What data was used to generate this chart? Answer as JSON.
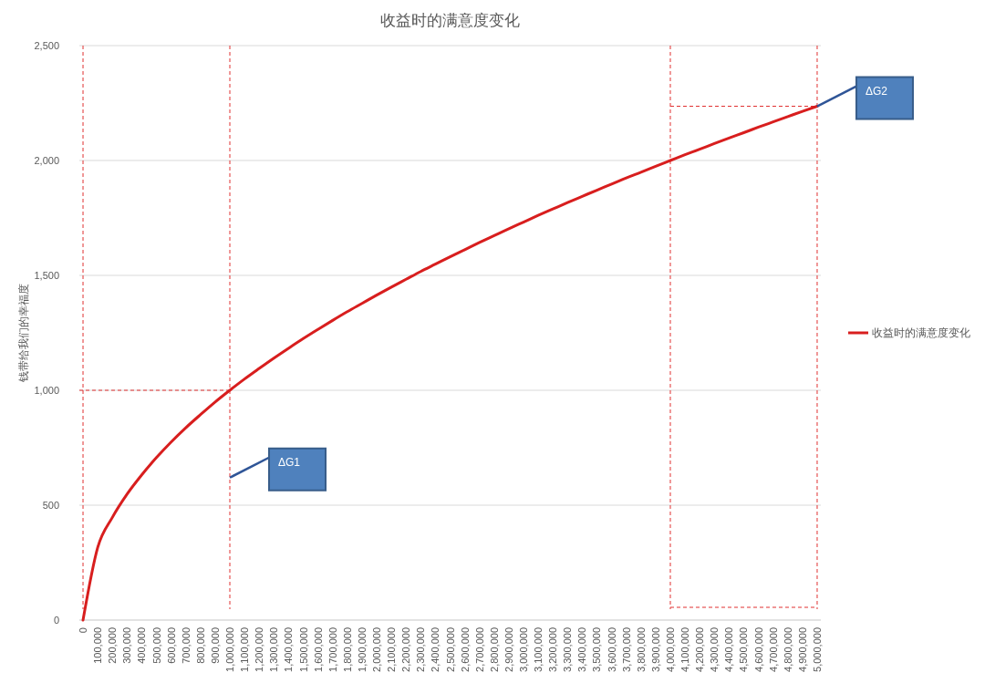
{
  "chart_data": {
    "type": "line",
    "title": "收益时的满意度变化",
    "ylabel": "钱带给我们的幸福度",
    "categories": [
      "0",
      "100,000",
      "200,000",
      "300,000",
      "400,000",
      "500,000",
      "600,000",
      "700,000",
      "800,000",
      "900,000",
      "1,000,000",
      "1,100,000",
      "1,200,000",
      "1,300,000",
      "1,400,000",
      "1,500,000",
      "1,600,000",
      "1,700,000",
      "1,800,000",
      "1,900,000",
      "2,000,000",
      "2,100,000",
      "2,200,000",
      "2,300,000",
      "2,400,000",
      "2,500,000",
      "2,600,000",
      "2,700,000",
      "2,800,000",
      "2,900,000",
      "3,000,000",
      "3,100,000",
      "3,200,000",
      "3,300,000",
      "3,400,000",
      "3,500,000",
      "3,600,000",
      "3,700,000",
      "3,800,000",
      "3,900,000",
      "4,000,000",
      "4,100,000",
      "4,200,000",
      "4,300,000",
      "4,400,000",
      "4,500,000",
      "4,600,000",
      "4,700,000",
      "4,800,000",
      "4,900,000",
      "5,000,000"
    ],
    "series": [
      {
        "name": "收益时的满意度变化",
        "color": "#d81e1e",
        "values": [
          0,
          316,
          447,
          548,
          632,
          707,
          775,
          837,
          894,
          949,
          1000,
          1049,
          1095,
          1140,
          1183,
          1225,
          1265,
          1304,
          1342,
          1378,
          1414,
          1449,
          1483,
          1517,
          1549,
          1581,
          1612,
          1643,
          1673,
          1703,
          1732,
          1761,
          1789,
          1817,
          1844,
          1871,
          1897,
          1924,
          1949,
          1975,
          2000,
          2025,
          2049,
          2074,
          2098,
          2121,
          2145,
          2168,
          2191,
          2214,
          2236
        ]
      }
    ],
    "ylim": [
      0,
      2500
    ],
    "yticks": [
      {
        "value": 0,
        "label": "0"
      },
      {
        "value": 500,
        "label": "500"
      },
      {
        "value": 1000,
        "label": "1,000"
      },
      {
        "value": 1500,
        "label": "1,500"
      },
      {
        "value": 2000,
        "label": "2,000"
      },
      {
        "value": 2500,
        "label": "2,500"
      }
    ],
    "grid": "y",
    "legend": "right",
    "marker": "none",
    "line_style": "solid",
    "ref_lines": [
      {
        "axis": "x",
        "value": "0",
        "color": "#e03030",
        "line_style": "dashed"
      },
      {
        "axis": "x",
        "value": "1,000,000",
        "color": "#e03030",
        "line_style": "dashed"
      },
      {
        "axis": "x",
        "value": "4,000,000",
        "color": "#e03030",
        "line_style": "dashed"
      },
      {
        "axis": "x",
        "value": "5,000,000",
        "color": "#e03030",
        "line_style": "dashed"
      },
      {
        "axis": "y",
        "value": 1000,
        "color": "#e03030",
        "line_style": "dashed"
      }
    ],
    "annotations": [
      {
        "text": "ΔG1",
        "x": "1,000,000",
        "y": 620
      },
      {
        "text": "ΔG2",
        "x": "5,000,000",
        "y": 2236
      }
    ]
  }
}
